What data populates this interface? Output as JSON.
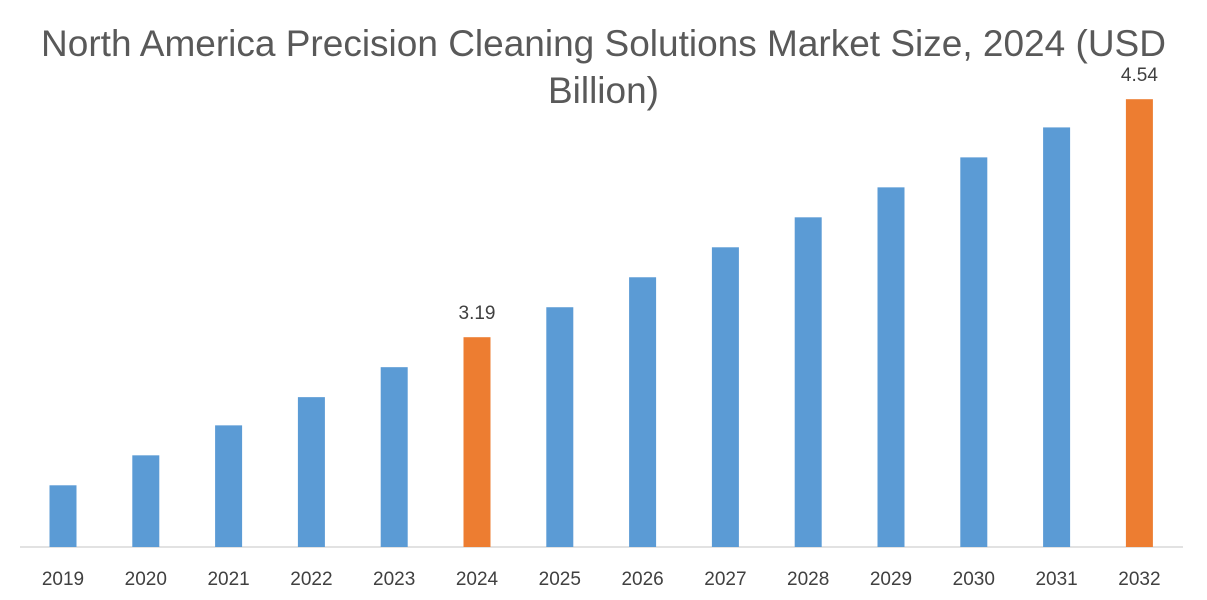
{
  "chart_data": {
    "type": "bar",
    "title": "North America Precision Cleaning Solutions Market Size, 2024 (USD Billion)",
    "xlabel": "",
    "ylabel": "",
    "categories": [
      "2019",
      "2020",
      "2021",
      "2022",
      "2023",
      "2024",
      "2025",
      "2026",
      "2027",
      "2028",
      "2029",
      "2030",
      "2031",
      "2032"
    ],
    "values": [
      2.35,
      2.52,
      2.69,
      2.85,
      3.02,
      3.19,
      3.36,
      3.53,
      3.7,
      3.87,
      4.04,
      4.21,
      4.38,
      4.54
    ],
    "data_labels": {
      "2024": "3.19",
      "2032": "4.54"
    },
    "highlighted": [
      "2024",
      "2032"
    ],
    "ylim": [
      2.0,
      4.6
    ],
    "y_axis_visible": false,
    "grid": false,
    "legend": "none",
    "colors": {
      "default": "#5B9BD5",
      "highlight": "#ED7D31",
      "axis": "#D9D9D9"
    }
  }
}
